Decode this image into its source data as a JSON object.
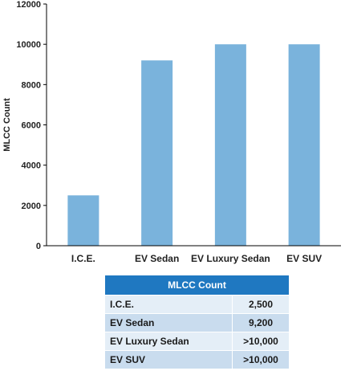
{
  "chart_data": {
    "type": "bar",
    "categories": [
      "I.C.E.",
      "EV Sedan",
      "EV Luxury Sedan",
      "EV SUV"
    ],
    "values": [
      2500,
      9200,
      10000,
      10000
    ],
    "title": "",
    "xlabel": "",
    "ylabel": "MLCC Count",
    "ylim": [
      0,
      12000
    ],
    "yticks": [
      "0",
      "2000",
      "4000",
      "6000",
      "8000",
      "10000",
      "12000"
    ],
    "grid": false,
    "bar_color": "#7ab3dc"
  },
  "table": {
    "header": "MLCC Count",
    "rows": [
      {
        "label": "I.C.E.",
        "value": "2,500"
      },
      {
        "label": "EV Sedan",
        "value": "9,200"
      },
      {
        "label": "EV Luxury Sedan",
        "value": ">10,000"
      },
      {
        "label": "EV SUV",
        "value": ">10,000"
      }
    ],
    "header_color": "#1f78c1"
  }
}
